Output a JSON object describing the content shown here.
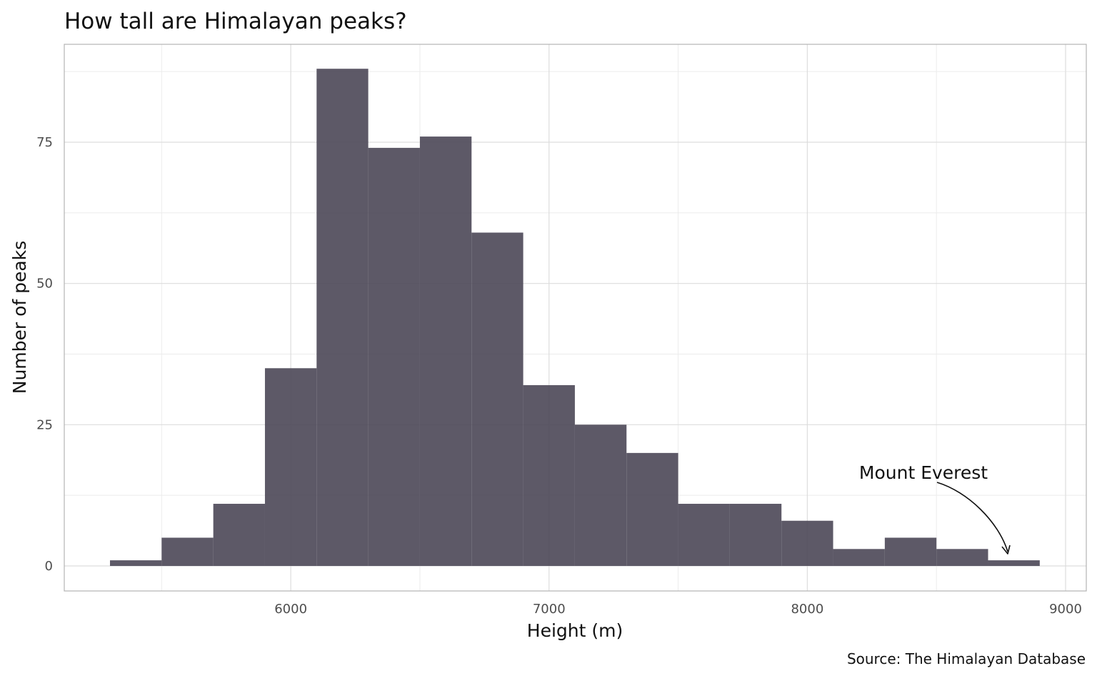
{
  "chart_data": {
    "type": "bar",
    "subtype": "histogram",
    "title": "How tall are Himalayan peaks?",
    "xlabel": "Height (m)",
    "ylabel": "Number of peaks",
    "caption": "Source: The Himalayan Database",
    "xlim": [
      5300,
      9000
    ],
    "ylim": [
      -4.5,
      92.5
    ],
    "x_ticks": [
      {
        "value": 6000,
        "label": "6000"
      },
      {
        "value": 7000,
        "label": "7000"
      },
      {
        "value": 8000,
        "label": "8000"
      },
      {
        "value": 9000,
        "label": "9000"
      }
    ],
    "x_minor_ticks": [
      5500,
      6500,
      7500,
      8500
    ],
    "y_ticks": [
      {
        "value": 0,
        "label": "0"
      },
      {
        "value": 25,
        "label": "25"
      },
      {
        "value": 50,
        "label": "50"
      },
      {
        "value": 75,
        "label": "75"
      }
    ],
    "y_minor_ticks": [
      12.5,
      37.5,
      62.5,
      87.5
    ],
    "grid": true,
    "bin_width": 200,
    "bins": [
      {
        "start": 5300,
        "end": 5500,
        "count": 1
      },
      {
        "start": 5500,
        "end": 5700,
        "count": 5
      },
      {
        "start": 5700,
        "end": 5900,
        "count": 11
      },
      {
        "start": 5900,
        "end": 6100,
        "count": 35
      },
      {
        "start": 6100,
        "end": 6300,
        "count": 88
      },
      {
        "start": 6300,
        "end": 6500,
        "count": 74
      },
      {
        "start": 6500,
        "end": 6700,
        "count": 76
      },
      {
        "start": 6700,
        "end": 6900,
        "count": 59
      },
      {
        "start": 6900,
        "end": 7100,
        "count": 32
      },
      {
        "start": 7100,
        "end": 7300,
        "count": 25
      },
      {
        "start": 7300,
        "end": 7500,
        "count": 20
      },
      {
        "start": 7500,
        "end": 7700,
        "count": 11
      },
      {
        "start": 7700,
        "end": 7900,
        "count": 11
      },
      {
        "start": 7900,
        "end": 8100,
        "count": 8
      },
      {
        "start": 8100,
        "end": 8300,
        "count": 3
      },
      {
        "start": 8300,
        "end": 8500,
        "count": 5
      },
      {
        "start": 8500,
        "end": 8700,
        "count": 3
      },
      {
        "start": 8700,
        "end": 8900,
        "count": 1
      }
    ],
    "bar_color": "#4b4757",
    "annotation": {
      "text": "Mount Everest",
      "points_to": {
        "x": 8848,
        "y": 1
      }
    }
  }
}
